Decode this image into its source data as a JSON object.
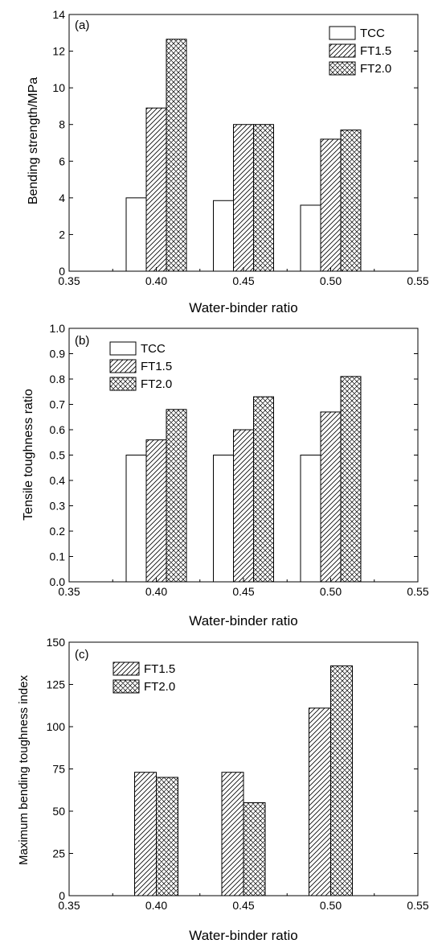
{
  "panels": [
    {
      "chart_data": {
        "type": "bar",
        "panel_label": "(a)",
        "categories": [
          "0.40",
          "0.45",
          "0.50"
        ],
        "category_x": [
          0.4,
          0.45,
          0.5
        ],
        "series": [
          {
            "name": "TCC",
            "fill": "plain",
            "values": [
              4.0,
              3.85,
              3.6
            ]
          },
          {
            "name": "FT1.5",
            "fill": "hatch",
            "values": [
              8.9,
              8.0,
              7.2
            ]
          },
          {
            "name": "FT2.0",
            "fill": "crosshatch",
            "values": [
              12.65,
              8.0,
              7.7
            ]
          }
        ],
        "xlabel": "Water-binder ratio",
        "ylabel": "Bending strength/MPa",
        "xlim": [
          0.35,
          0.55
        ],
        "ylim": [
          0,
          14
        ],
        "xticks": [
          "0.35",
          "0.40",
          "0.45",
          "0.50",
          "0.55"
        ],
        "yticks": [
          "0",
          "2",
          "4",
          "6",
          "8",
          "10",
          "12",
          "14"
        ],
        "legend_position": "top-right",
        "grid": false
      }
    },
    {
      "chart_data": {
        "type": "bar",
        "panel_label": "(b)",
        "categories": [
          "0.40",
          "0.45",
          "0.50"
        ],
        "category_x": [
          0.4,
          0.45,
          0.5
        ],
        "series": [
          {
            "name": "TCC",
            "fill": "plain",
            "values": [
              0.5,
              0.5,
              0.5
            ]
          },
          {
            "name": "FT1.5",
            "fill": "hatch",
            "values": [
              0.56,
              0.6,
              0.67
            ]
          },
          {
            "name": "FT2.0",
            "fill": "crosshatch",
            "values": [
              0.68,
              0.73,
              0.81
            ]
          }
        ],
        "xlabel": "Water-binder ratio",
        "ylabel": "Tensile toughness ratio",
        "xlim": [
          0.35,
          0.55
        ],
        "ylim": [
          0,
          1.0
        ],
        "xticks": [
          "0.35",
          "0.40",
          "0.45",
          "0.50",
          "0.55"
        ],
        "yticks": [
          "0.0",
          "0.1",
          "0.2",
          "0.3",
          "0.4",
          "0.5",
          "0.6",
          "0.7",
          "0.8",
          "0.9",
          "1.0"
        ],
        "legend_position": "top-left",
        "grid": false
      }
    },
    {
      "chart_data": {
        "type": "bar",
        "panel_label": "(c)",
        "categories": [
          "0.40",
          "0.45",
          "0.50"
        ],
        "category_x": [
          0.4,
          0.45,
          0.5
        ],
        "series": [
          {
            "name": "FT1.5",
            "fill": "hatch",
            "values": [
              73,
              73,
              111
            ]
          },
          {
            "name": "FT2.0",
            "fill": "crosshatch",
            "values": [
              70,
              55,
              136
            ]
          }
        ],
        "xlabel": "Water-binder ratio",
        "ylabel": "Maximum bending toughness index",
        "xlim": [
          0.35,
          0.55
        ],
        "ylim": [
          0,
          150
        ],
        "xticks": [
          "0.35",
          "0.40",
          "0.45",
          "0.50",
          "0.55"
        ],
        "yticks": [
          "0",
          "25",
          "50",
          "75",
          "100",
          "125",
          "150"
        ],
        "legend_position": "top-left",
        "grid": false
      }
    }
  ]
}
